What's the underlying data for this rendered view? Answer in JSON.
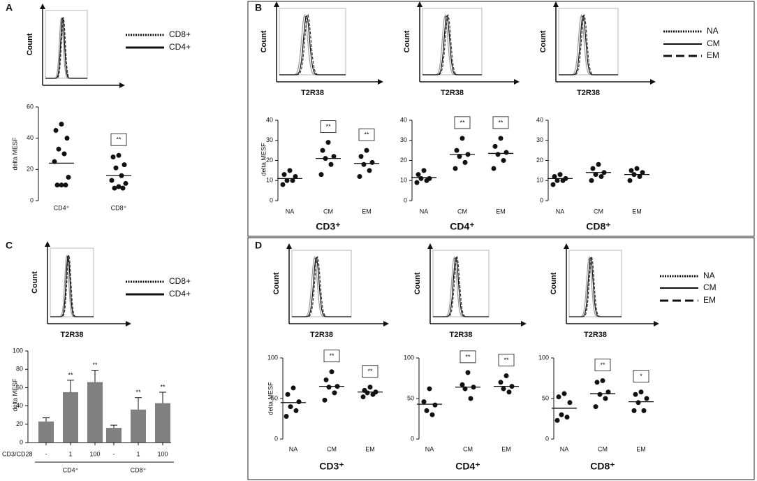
{
  "panels": [
    {
      "letter": "A",
      "histograms": [
        {
          "ylabel": "Count"
        }
      ],
      "legend": [
        "CD8+",
        "CD4+"
      ]
    },
    {
      "letter": "B",
      "histograms": [
        {
          "ylabel": "Count",
          "xlabel": "T2R38"
        },
        {
          "ylabel": "Count",
          "xlabel": "T2R38"
        },
        {
          "ylabel": "Count",
          "xlabel": "T2R38"
        }
      ],
      "legend": [
        "NA",
        "CM",
        "EM"
      ]
    },
    {
      "letter": "C",
      "histograms": [
        {
          "ylabel": "Count",
          "xlabel": "T2R38"
        }
      ],
      "legend": [
        "CD8+",
        "CD4+"
      ]
    },
    {
      "letter": "D",
      "histograms": [
        {
          "ylabel": "Count",
          "xlabel": "T2R38"
        },
        {
          "ylabel": "Count",
          "xlabel": "T2R38"
        },
        {
          "ylabel": "Count",
          "xlabel": "T2R38"
        }
      ],
      "legend": [
        "NA",
        "CM",
        "EM"
      ]
    }
  ],
  "chart_data": [
    {
      "type": "dotplot",
      "ylabel": "delta MESF",
      "categories": [
        "CD4⁺",
        "CD8⁺"
      ],
      "points": [
        [
          49,
          45,
          40,
          33,
          30,
          25,
          15,
          10,
          10,
          10
        ],
        [
          29,
          28,
          23,
          21,
          16,
          13,
          11,
          9,
          8,
          8
        ]
      ],
      "means": [
        24,
        16
      ],
      "annotations": [
        null,
        "**"
      ],
      "ylim": [
        0,
        60
      ],
      "yticks": [
        0,
        20,
        40,
        60
      ]
    },
    {
      "type": "dotplot",
      "ylabel": "delta MESF",
      "xlabel": "CD3⁺",
      "categories": [
        "NA",
        "CM",
        "EM"
      ],
      "points": [
        [
          15,
          13,
          12,
          10,
          10,
          8
        ],
        [
          29,
          25,
          22,
          21,
          18,
          13
        ],
        [
          25,
          22,
          19,
          18,
          15,
          12
        ]
      ],
      "means": [
        11,
        21,
        18.5
      ],
      "annotations": [
        null,
        "**",
        "**"
      ],
      "ylim": [
        0,
        40
      ],
      "yticks": [
        0,
        10,
        20,
        30,
        40
      ]
    },
    {
      "type": "dotplot",
      "xlabel": "CD4⁺",
      "categories": [
        "NA",
        "CM",
        "EM"
      ],
      "points": [
        [
          15,
          13,
          11,
          11,
          10,
          9
        ],
        [
          31,
          25,
          23,
          22,
          19,
          16
        ],
        [
          31,
          27,
          24,
          23,
          20,
          16
        ]
      ],
      "means": [
        11.5,
        23,
        23.5
      ],
      "annotations": [
        null,
        "**",
        "**"
      ],
      "ylim": [
        0,
        40
      ],
      "yticks": [
        0,
        10,
        20,
        30,
        40
      ]
    },
    {
      "type": "dotplot",
      "xlabel": "CD8⁺",
      "categories": [
        "NA",
        "CM",
        "EM"
      ],
      "points": [
        [
          13,
          12,
          11,
          10,
          10,
          8
        ],
        [
          18,
          16,
          14,
          13,
          12,
          10
        ],
        [
          16,
          15,
          14,
          13,
          12,
          10
        ]
      ],
      "means": [
        11,
        14,
        13
      ],
      "ylim": [
        0,
        40
      ],
      "yticks": [
        0,
        10,
        20,
        30,
        40
      ]
    },
    {
      "type": "bar",
      "ylabel": "delta MESF",
      "category_label": "CD3/CD28",
      "categories": [
        "-",
        "1",
        "100",
        "-",
        "1",
        "100"
      ],
      "groups": [
        "CD4⁺",
        "CD8⁺"
      ],
      "values": [
        23,
        55,
        66,
        16,
        36,
        43
      ],
      "errors": [
        4,
        13,
        13,
        3,
        13,
        12
      ],
      "annotations": [
        null,
        "**",
        "**",
        null,
        "**",
        "**"
      ],
      "color": "#808080",
      "ylim": [
        0,
        100
      ],
      "yticks": [
        0,
        20,
        40,
        60,
        80,
        100
      ]
    },
    {
      "type": "dotplot",
      "ylabel": "delta MESF",
      "xlabel": "CD3⁺",
      "categories": [
        "NA",
        "CM",
        "EM"
      ],
      "points": [
        [
          63,
          55,
          46,
          40,
          35,
          28
        ],
        [
          83,
          73,
          65,
          64,
          57,
          48
        ],
        [
          64,
          60,
          58,
          57,
          55,
          52
        ]
      ],
      "means": [
        45,
        65,
        58
      ],
      "annotations": [
        null,
        "**",
        "**"
      ],
      "ylim": [
        0,
        100
      ],
      "yticks": [
        0,
        50,
        100
      ]
    },
    {
      "type": "dotplot",
      "xlabel": "CD4⁺",
      "categories": [
        "NA",
        "CM",
        "EM"
      ],
      "points": [
        [
          62,
          46,
          42,
          35,
          30
        ],
        [
          82,
          67,
          64,
          62,
          50
        ],
        [
          78,
          70,
          65,
          62,
          58
        ]
      ],
      "means": [
        43,
        64,
        65
      ],
      "annotations": [
        null,
        "**",
        "**"
      ],
      "ylim": [
        0,
        100
      ],
      "yticks": [
        0,
        50,
        100
      ]
    },
    {
      "type": "dotplot",
      "xlabel": "CD8⁺",
      "categories": [
        "NA",
        "CM",
        "EM"
      ],
      "points": [
        [
          56,
          52,
          45,
          30,
          27,
          23
        ],
        [
          72,
          70,
          58,
          55,
          50,
          40
        ],
        [
          58,
          55,
          50,
          45,
          35,
          35
        ]
      ],
      "means": [
        38,
        56,
        46
      ],
      "annotations": [
        null,
        "**",
        "*"
      ],
      "ylim": [
        0,
        100
      ],
      "yticks": [
        0,
        50,
        100
      ]
    }
  ]
}
